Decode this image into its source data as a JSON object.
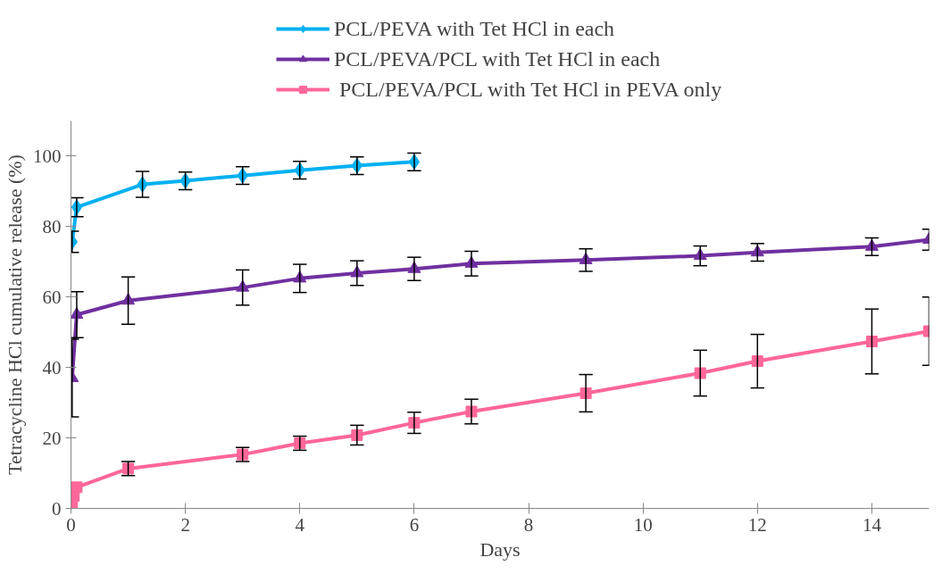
{
  "chart_data": {
    "type": "line",
    "xlabel": "Days",
    "ylabel": "Tetracycline HCl cumulative release (%)",
    "xlim": [
      0,
      15
    ],
    "ylim": [
      0,
      110
    ],
    "xticks": [
      0,
      2,
      4,
      6,
      8,
      10,
      12,
      14
    ],
    "yticks": [
      0,
      20,
      40,
      60,
      80,
      100
    ],
    "grid": false,
    "legend": "top",
    "line_style": "solid",
    "series": [
      {
        "name": "PCL/PEVA with Tet HCl in each",
        "color": "#00b0f0",
        "marker": "diamond",
        "x": [
          0.02,
          0.1,
          1.25,
          2,
          3,
          4,
          5,
          6
        ],
        "values": [
          75.7,
          85.5,
          92,
          93,
          94.5,
          96,
          97.3,
          98.4
        ],
        "errors": [
          3,
          2.7,
          3.7,
          2.5,
          2.5,
          2.5,
          2.5,
          2.5
        ]
      },
      {
        "name": "PCL/PEVA/PCL with Tet HCl in each",
        "color": "#7030a0",
        "marker": "triangle",
        "x": [
          0.02,
          0.1,
          1,
          3,
          4,
          5,
          6,
          7,
          9,
          11,
          12,
          14,
          15
        ],
        "values": [
          37,
          55,
          59,
          62.7,
          65.3,
          66.8,
          68,
          69.5,
          70.5,
          71.7,
          72.7,
          74.3,
          76.3
        ],
        "errors": [
          11,
          6.5,
          6.7,
          5,
          4,
          3.5,
          3.3,
          3.5,
          3.2,
          2.8,
          2.5,
          2.5,
          3
        ]
      },
      {
        "name": " PCL/PEVA/PCL with Tet HCl in PEVA only",
        "color": "#ff6699",
        "marker": "square",
        "x": [
          0,
          0.02,
          0.05,
          0.1,
          1,
          3,
          4,
          5,
          6,
          7,
          9,
          11,
          12,
          14,
          15
        ],
        "values": [
          0,
          1.5,
          3.5,
          6,
          11.3,
          15.3,
          18.5,
          20.8,
          24.3,
          27.5,
          32.7,
          38.4,
          41.8,
          47.4,
          50.3
        ],
        "errors": [
          null,
          null,
          null,
          null,
          2,
          2,
          2,
          2.8,
          3,
          3.5,
          5.3,
          6.5,
          7.6,
          9.2,
          9.7
        ]
      }
    ]
  }
}
